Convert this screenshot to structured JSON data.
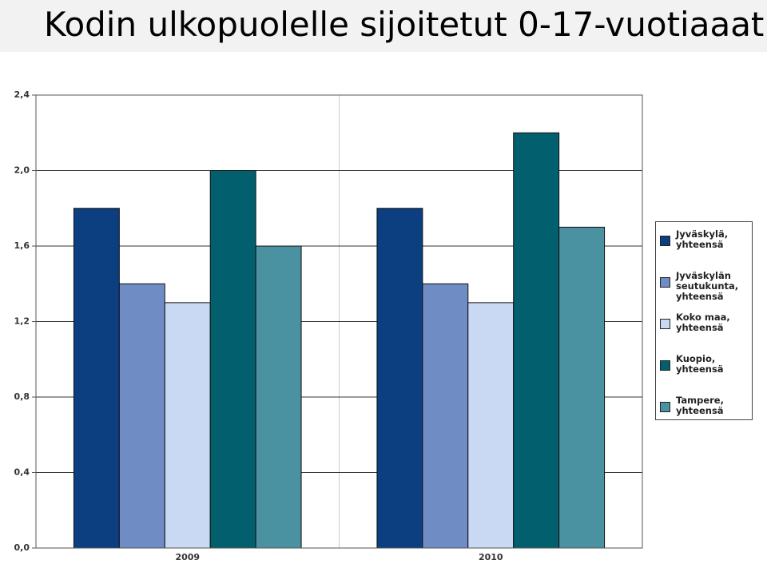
{
  "chart_data": {
    "type": "bar",
    "title": "Kodin ulkopuolelle sijoitetut 0-17-vuotiaaat",
    "categories": [
      "2009",
      "2010"
    ],
    "series": [
      {
        "name": "Jyväskylä, yhteensä",
        "color": "#0b3f80",
        "values": [
          1.8,
          1.8
        ]
      },
      {
        "name": "Jyväskylän seutukunta, yhteensä",
        "color": "#6f8cc5",
        "values": [
          1.4,
          1.4
        ]
      },
      {
        "name": "Koko maa, yhteensä",
        "color": "#c9d9f3",
        "values": [
          1.3,
          1.3
        ]
      },
      {
        "name": "Kuopio, yhteensä",
        "color": "#015f6e",
        "values": [
          2.0,
          2.2
        ]
      },
      {
        "name": "Tampere, yhteensä",
        "color": "#4a92a1",
        "values": [
          1.6,
          1.7
        ]
      }
    ],
    "ylim": [
      0,
      2.4
    ],
    "yticks": [
      {
        "value": 0,
        "label": "0,0"
      },
      {
        "value": 0.4,
        "label": "0,4"
      },
      {
        "value": 0.8,
        "label": "0,8"
      },
      {
        "value": 1.2,
        "label": "1,2"
      },
      {
        "value": 1.6,
        "label": "1,6"
      },
      {
        "value": 2.0,
        "label": "2,0"
      },
      {
        "value": 2.4,
        "label": "2,4"
      }
    ],
    "grid": true,
    "legend": "right"
  }
}
